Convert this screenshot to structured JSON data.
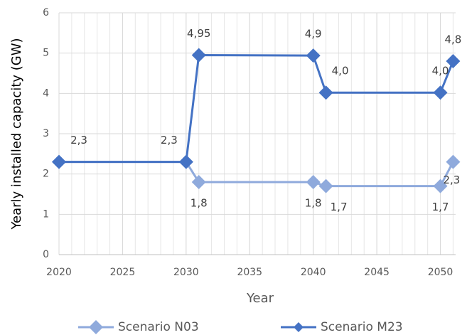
{
  "chart_data": {
    "type": "line",
    "x_label": "Year",
    "y_label": "Yearly installed capacity (GW)",
    "x": [
      2020,
      2030,
      2031,
      2040,
      2041,
      2050,
      2051
    ],
    "series": [
      {
        "name": "Scenario N03",
        "color": "#8faadc",
        "values": [
          2.3,
          2.3,
          1.8,
          1.8,
          1.7,
          1.7,
          2.3
        ],
        "value_labels": [
          null,
          null,
          "1,8",
          "1,8",
          "1,7",
          "1,7",
          "2,3"
        ]
      },
      {
        "name": "Scenario M23",
        "color": "#4472c4",
        "values": [
          2.3,
          2.3,
          4.95,
          4.94,
          4.02,
          4.02,
          4.8
        ],
        "value_labels": [
          "2,3",
          "2,3",
          "4,95",
          "4,9",
          "4,0",
          "4,0",
          "4,8"
        ]
      }
    ],
    "xlim": [
      2020,
      2051.2
    ],
    "xticks": [
      2020,
      2025,
      2030,
      2035,
      2040,
      2045,
      2050
    ],
    "ylim": [
      0,
      6
    ],
    "yticks": [
      0,
      1,
      2,
      3,
      4,
      5,
      6
    ],
    "grid": true,
    "legend": "bottom"
  }
}
